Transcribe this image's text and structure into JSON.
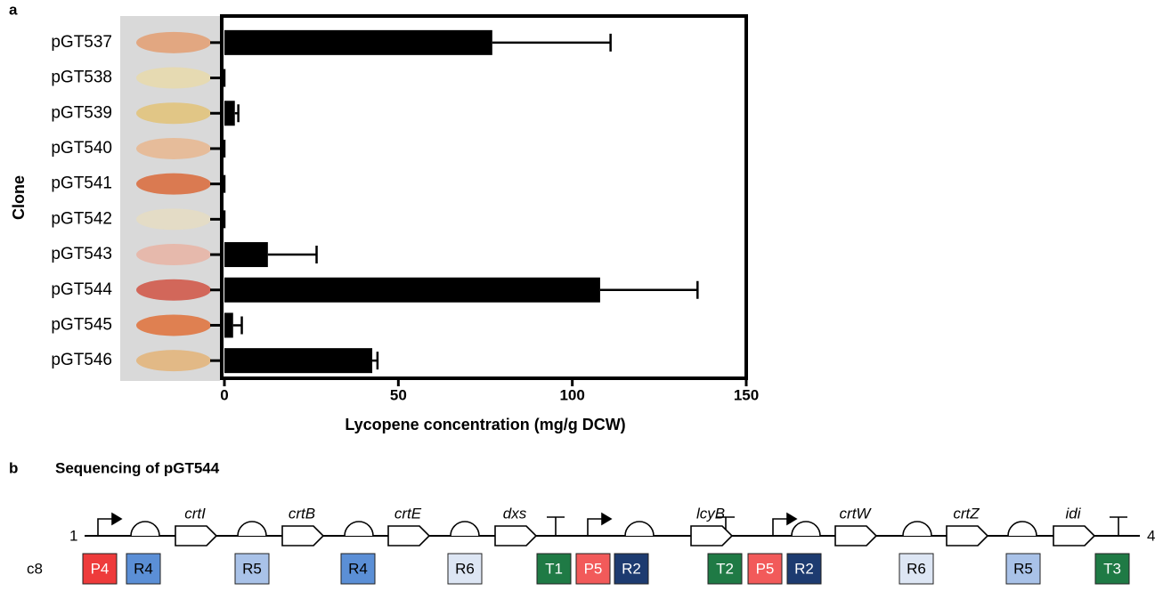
{
  "chart_data": {
    "type": "bar",
    "orientation": "horizontal",
    "panel_label": "a",
    "categories": [
      "pGT537",
      "pGT538",
      "pGT539",
      "pGT540",
      "pGT541",
      "pGT542",
      "pGT543",
      "pGT544",
      "pGT545",
      "pGT546"
    ],
    "values": [
      77,
      0,
      3,
      0,
      0,
      0,
      12.5,
      108,
      2.5,
      42.5
    ],
    "errors": [
      34,
      0,
      1,
      0,
      0,
      0,
      14,
      28,
      2.5,
      1.5
    ],
    "color": "#000000",
    "xlim": [
      0,
      150
    ],
    "xticks": [
      0,
      50,
      100,
      150
    ],
    "xlabel": "Lycopene concentration (mg/g DCW)",
    "ylabel": "Clone"
  },
  "diagram": {
    "panel_label": "b",
    "title": "Sequencing of pGT544",
    "start_label": "1",
    "end_label": "4",
    "genes": [
      "crtI",
      "crtB",
      "crtE",
      "dxs",
      "lcyB",
      "crtW",
      "crtZ",
      "idi"
    ],
    "row_label": "c8",
    "parts": [
      {
        "label": "P4",
        "color": "#ee3b3b"
      },
      {
        "label": "R4",
        "color": "#5b8fd6"
      },
      {
        "label": "R5",
        "color": "#a9c2e8"
      },
      {
        "label": "R4",
        "color": "#5b8fd6"
      },
      {
        "label": "R6",
        "color": "#dde6f4"
      },
      {
        "label": "T1",
        "color": "#1f7a45"
      },
      {
        "label": "P5",
        "color": "#f25a5a"
      },
      {
        "label": "R2",
        "color": "#1d3b70"
      },
      {
        "label": "T2",
        "color": "#1f7a45"
      },
      {
        "label": "P5",
        "color": "#f25a5a"
      },
      {
        "label": "R2",
        "color": "#1d3b70"
      },
      {
        "label": "R6",
        "color": "#dde6f4"
      },
      {
        "label": "R5",
        "color": "#a9c2e8"
      },
      {
        "label": "T3",
        "color": "#1f7a45"
      }
    ]
  }
}
